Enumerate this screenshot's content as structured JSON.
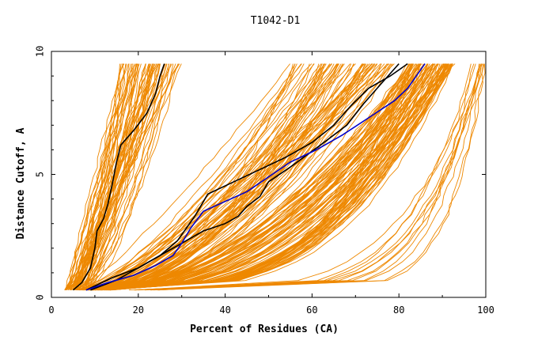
{
  "chart_data": {
    "type": "line",
    "title": "T1042-D1",
    "xlabel": "Percent of Residues (CA)",
    "ylabel": "Distance Cutoff, A",
    "xlim": [
      0,
      100
    ],
    "ylim": [
      0,
      10
    ],
    "xticks": [
      "0",
      "20",
      "40",
      "60",
      "80",
      "100"
    ],
    "yticks": [
      "0",
      "5",
      "10"
    ],
    "grid": false,
    "legend": "none",
    "colors": {
      "models": "#ee8800",
      "highlight_black": "#000000",
      "highlight_blue": "#0000cc"
    },
    "series": [
      {
        "color": "#000000",
        "points": [
          [
            5,
            0.3
          ],
          [
            7,
            0.6
          ],
          [
            9,
            1.2
          ],
          [
            10,
            2.0
          ],
          [
            10.5,
            2.7
          ],
          [
            12,
            3.2
          ],
          [
            13,
            3.8
          ],
          [
            14,
            4.6
          ],
          [
            15,
            5.5
          ],
          [
            16,
            6.2
          ],
          [
            19,
            6.8
          ],
          [
            22,
            7.5
          ],
          [
            24,
            8.3
          ],
          [
            25,
            9.0
          ],
          [
            26,
            9.5
          ]
        ]
      },
      {
        "color": "#000000",
        "points": [
          [
            9,
            0.3
          ],
          [
            15,
            0.7
          ],
          [
            21,
            1.3
          ],
          [
            26,
            1.8
          ],
          [
            30,
            2.2
          ],
          [
            35,
            2.7
          ],
          [
            40,
            3.0
          ],
          [
            43,
            3.3
          ],
          [
            45,
            3.7
          ],
          [
            48,
            4.1
          ],
          [
            50,
            4.7
          ],
          [
            55,
            5.3
          ],
          [
            62,
            6.2
          ],
          [
            68,
            7.0
          ],
          [
            72,
            7.9
          ],
          [
            76,
            8.7
          ],
          [
            80,
            9.5
          ]
        ]
      },
      {
        "color": "#000000",
        "points": [
          [
            8,
            0.3
          ],
          [
            14,
            0.8
          ],
          [
            20,
            1.2
          ],
          [
            25,
            1.7
          ],
          [
            29,
            2.3
          ],
          [
            31,
            2.8
          ],
          [
            33,
            3.3
          ],
          [
            36,
            4.2
          ],
          [
            42,
            4.7
          ],
          [
            48,
            5.2
          ],
          [
            54,
            5.7
          ],
          [
            60,
            6.3
          ],
          [
            65,
            7.0
          ],
          [
            69,
            7.8
          ],
          [
            73,
            8.5
          ],
          [
            78,
            9.0
          ],
          [
            82,
            9.5
          ]
        ]
      },
      {
        "color": "#0000cc",
        "points": [
          [
            8,
            0.3
          ],
          [
            13,
            0.6
          ],
          [
            19,
            0.9
          ],
          [
            24,
            1.3
          ],
          [
            28,
            1.7
          ],
          [
            30,
            2.2
          ],
          [
            32,
            2.8
          ],
          [
            35,
            3.5
          ],
          [
            40,
            3.9
          ],
          [
            45,
            4.3
          ],
          [
            50,
            4.9
          ],
          [
            55,
            5.5
          ],
          [
            61,
            6.0
          ],
          [
            67,
            6.6
          ],
          [
            73,
            7.3
          ],
          [
            79,
            8.0
          ],
          [
            82,
            8.5
          ],
          [
            84,
            9.0
          ],
          [
            86,
            9.5
          ]
        ]
      }
    ],
    "bundles": [
      {
        "name": "steep",
        "count": 60,
        "color": "#ee8800",
        "start": [
          3,
          8
        ],
        "end": [
          16,
          30
        ],
        "bow": 1.2
      },
      {
        "name": "middle",
        "count": 70,
        "color": "#ee8800",
        "start": [
          6,
          12
        ],
        "end": [
          55,
          80
        ],
        "bow": 1.6
      },
      {
        "name": "wide",
        "count": 90,
        "color": "#ee8800",
        "start": [
          8,
          14
        ],
        "end": [
          82,
          93
        ],
        "bow": 2.4
      },
      {
        "name": "flat",
        "count": 12,
        "color": "#ee8800",
        "start": [
          18,
          26
        ],
        "end": [
          96,
          100
        ],
        "bow": 6.0
      }
    ]
  }
}
